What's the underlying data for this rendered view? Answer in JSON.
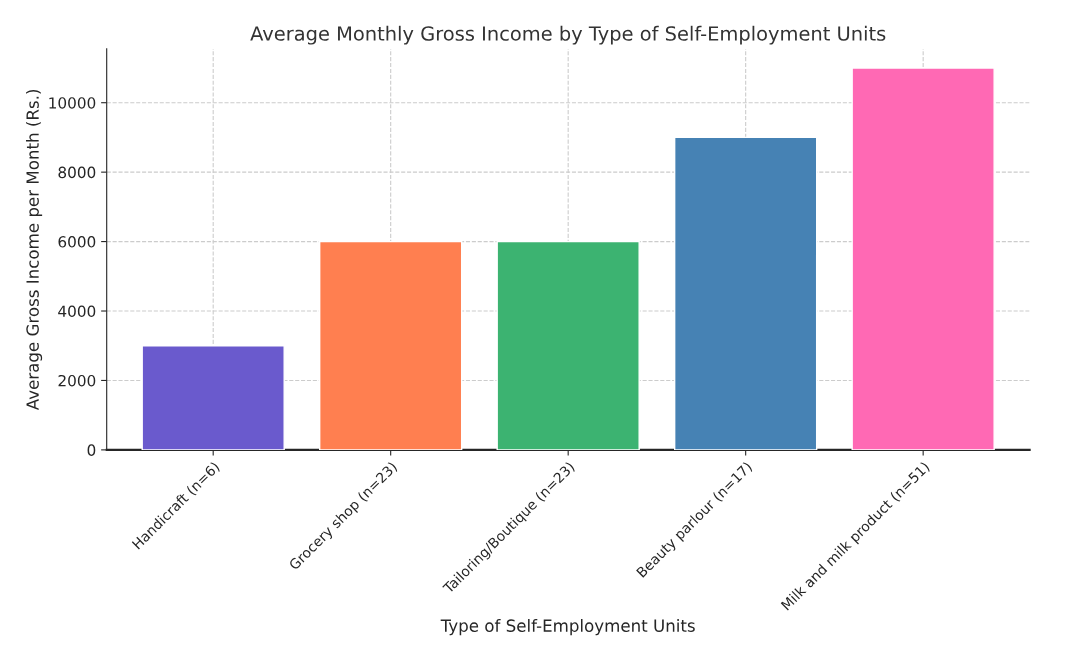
{
  "chart_data": {
    "type": "bar",
    "title": "Average Monthly Gross Income by Type of Self-Employment Units",
    "xlabel": "Type of Self-Employment Units",
    "ylabel": "Average Gross Income per Month (Rs.)",
    "categories": [
      "Handicraft (n=6)",
      "Grocery shop (n=23)",
      "Tailoring/Boutique (n=23)",
      "Beauty parlour (n=17)",
      "Milk and milk product (n=51)"
    ],
    "values": [
      3000,
      6000,
      6000,
      9000,
      11000
    ],
    "colors": [
      "#6a5acd",
      "#ff7f50",
      "#3cb371",
      "#4682b4",
      "#ff69b4"
    ],
    "ylim": [
      0,
      11550
    ],
    "yticks": [
      0,
      2000,
      4000,
      6000,
      8000,
      10000
    ],
    "grid": true
  }
}
